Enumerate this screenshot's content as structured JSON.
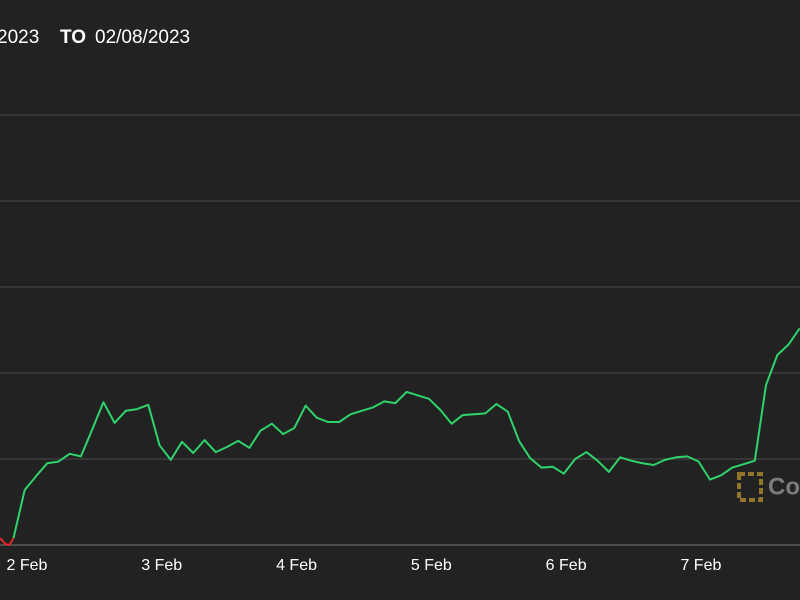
{
  "header": {
    "from": "2023",
    "to_label": "TO",
    "to": "02/08/2023"
  },
  "logo": {
    "text": "Co"
  },
  "chart_data": {
    "type": "line",
    "xlim": [
      1.8,
      7.735
    ],
    "xticks": [
      {
        "value": 2,
        "label": "2 Feb"
      },
      {
        "value": 3,
        "label": "3 Feb"
      },
      {
        "value": 4,
        "label": "4 Feb"
      },
      {
        "value": 5,
        "label": "5 Feb"
      },
      {
        "value": 6,
        "label": "6 Feb"
      },
      {
        "value": 7,
        "label": "7 Feb"
      }
    ],
    "ylim": [
      0,
      5
    ],
    "yticks": [
      0,
      1,
      2,
      3,
      4,
      5
    ],
    "grid": true,
    "series": [
      {
        "color": "#e3262b",
        "x": [
          1.8,
          1.84,
          1.87,
          1.9
        ],
        "values": [
          0.08,
          0.01,
          0,
          0.08
        ]
      },
      {
        "color": "#2fd36b",
        "x": [
          1.9,
          1.983,
          2.067,
          2.15,
          2.233,
          2.317,
          2.4,
          2.483,
          2.567,
          2.65,
          2.733,
          2.817,
          2.9,
          2.983,
          3.067,
          3.15,
          3.233,
          3.317,
          3.4,
          3.483,
          3.567,
          3.65,
          3.733,
          3.817,
          3.9,
          3.983,
          4.067,
          4.15,
          4.233,
          4.317,
          4.4,
          4.483,
          4.567,
          4.65,
          4.733,
          4.817,
          4.9,
          4.983,
          5.067,
          5.15,
          5.233,
          5.317,
          5.4,
          5.483,
          5.567,
          5.65,
          5.733,
          5.817,
          5.9,
          5.983,
          6.067,
          6.15,
          6.233,
          6.317,
          6.4,
          6.483,
          6.567,
          6.65,
          6.733,
          6.817,
          6.9,
          6.983,
          7.067,
          7.15,
          7.233,
          7.317,
          7.4,
          7.483,
          7.567,
          7.65,
          7.733
        ],
        "values": [
          0.08,
          0.64,
          0.8,
          0.95,
          0.97,
          1.06,
          1.03,
          1.34,
          1.66,
          1.42,
          1.56,
          1.58,
          1.63,
          1.16,
          0.99,
          1.2,
          1.07,
          1.22,
          1.08,
          1.14,
          1.21,
          1.13,
          1.33,
          1.41,
          1.29,
          1.36,
          1.62,
          1.48,
          1.43,
          1.43,
          1.52,
          1.56,
          1.6,
          1.67,
          1.65,
          1.78,
          1.74,
          1.7,
          1.57,
          1.41,
          1.51,
          1.52,
          1.53,
          1.64,
          1.55,
          1.21,
          1.01,
          0.9,
          0.91,
          0.83,
          1.0,
          1.08,
          0.98,
          0.85,
          1.02,
          0.98,
          0.95,
          0.93,
          0.99,
          1.02,
          1.03,
          0.97,
          0.76,
          0.81,
          0.9,
          0.94,
          0.98,
          1.86,
          2.21,
          2.33,
          2.52
        ]
      }
    ]
  }
}
